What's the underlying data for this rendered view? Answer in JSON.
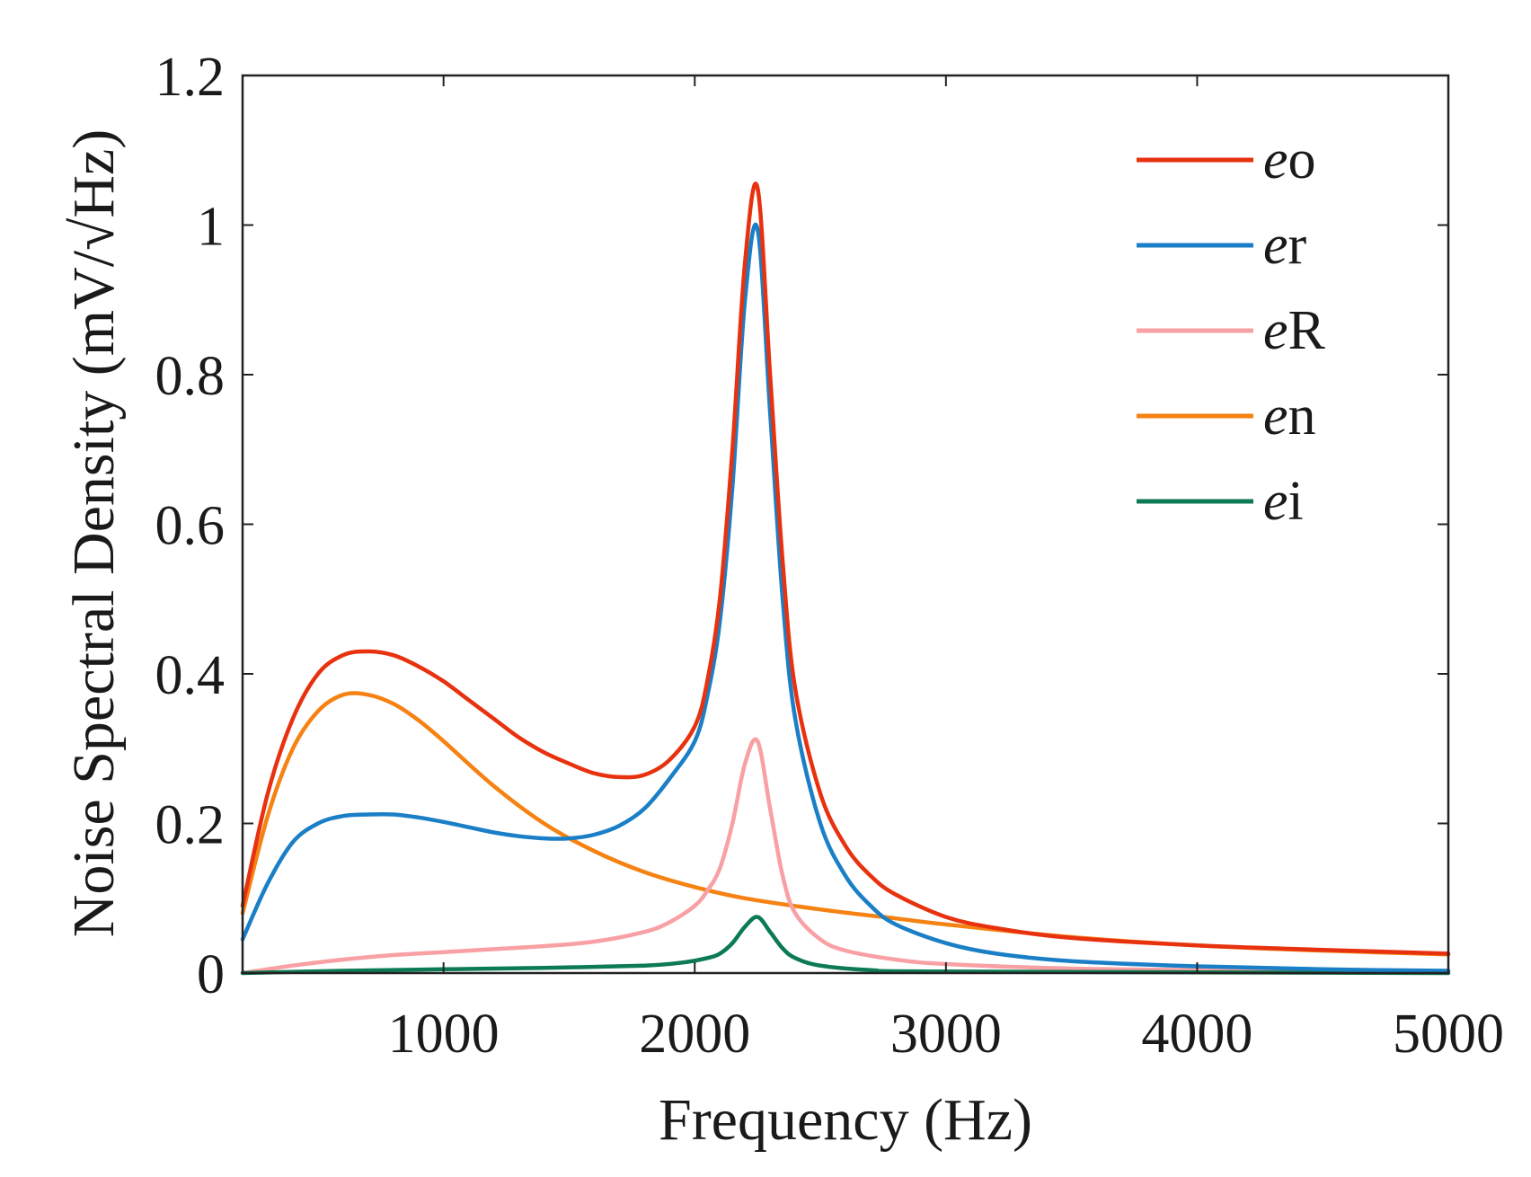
{
  "chart_data": {
    "type": "line",
    "title": "",
    "xlabel": "Frequency (Hz)",
    "ylabel": "Noise Spectral Density (mV/√Hz)",
    "xlim": [
      200,
      5000
    ],
    "ylim": [
      0,
      1.2
    ],
    "xticks": [
      1000,
      2000,
      3000,
      4000,
      5000
    ],
    "xtick_labels": [
      "1000",
      "2000",
      "3000",
      "4000",
      "5000"
    ],
    "yticks": [
      0,
      0.2,
      0.4,
      0.6,
      0.8,
      1.0,
      1.2
    ],
    "ytick_labels": [
      "0",
      "0.2",
      "0.4",
      "0.6",
      "0.8",
      "1",
      "1.2"
    ],
    "grid": false,
    "legend_position": "top-right",
    "series": [
      {
        "name": "eo",
        "prefix": "e",
        "suffix": "o",
        "color": "#e8320f",
        "x": [
          200,
          300,
          400,
          500,
          600,
          700,
          800,
          900,
          1000,
          1100,
          1200,
          1300,
          1400,
          1500,
          1600,
          1700,
          1800,
          1900,
          2000,
          2050,
          2100,
          2150,
          2200,
          2250,
          2300,
          2350,
          2400,
          2500,
          2600,
          2700,
          2800,
          3000,
          3200,
          3500,
          4000,
          4500,
          5000
        ],
        "y": [
          0.09,
          0.24,
          0.34,
          0.4,
          0.425,
          0.43,
          0.425,
          0.41,
          0.39,
          0.365,
          0.34,
          0.315,
          0.295,
          0.28,
          0.267,
          0.262,
          0.265,
          0.285,
          0.33,
          0.39,
          0.5,
          0.7,
          0.95,
          1.05,
          0.8,
          0.55,
          0.38,
          0.24,
          0.17,
          0.13,
          0.105,
          0.075,
          0.06,
          0.047,
          0.037,
          0.031,
          0.026
        ]
      },
      {
        "name": "er",
        "prefix": "e",
        "suffix": "r",
        "color": "#1a7fc6",
        "x": [
          200,
          300,
          400,
          500,
          600,
          700,
          800,
          900,
          1000,
          1100,
          1200,
          1300,
          1400,
          1500,
          1600,
          1700,
          1800,
          1900,
          2000,
          2050,
          2100,
          2150,
          2200,
          2250,
          2300,
          2350,
          2400,
          2500,
          2600,
          2700,
          2800,
          3000,
          3200,
          3500,
          4000,
          4500,
          5000
        ],
        "y": [
          0.045,
          0.12,
          0.175,
          0.2,
          0.21,
          0.212,
          0.212,
          0.208,
          0.202,
          0.195,
          0.188,
          0.183,
          0.18,
          0.18,
          0.185,
          0.197,
          0.22,
          0.26,
          0.31,
          0.37,
          0.47,
          0.65,
          0.9,
          0.995,
          0.75,
          0.5,
          0.34,
          0.2,
          0.13,
          0.09,
          0.065,
          0.04,
          0.026,
          0.016,
          0.009,
          0.005,
          0.003
        ]
      },
      {
        "name": "eR",
        "prefix": "e",
        "suffix": "R",
        "color": "#f8a0a3",
        "x": [
          200,
          400,
          600,
          800,
          1000,
          1200,
          1400,
          1600,
          1800,
          1900,
          2000,
          2050,
          2100,
          2150,
          2200,
          2250,
          2300,
          2350,
          2400,
          2500,
          2600,
          2800,
          3000,
          3500,
          4000,
          5000
        ],
        "y": [
          0.0,
          0.01,
          0.018,
          0.024,
          0.028,
          0.032,
          0.036,
          0.042,
          0.055,
          0.068,
          0.09,
          0.11,
          0.14,
          0.2,
          0.28,
          0.31,
          0.22,
          0.13,
          0.08,
          0.045,
          0.03,
          0.018,
          0.012,
          0.006,
          0.004,
          0.002
        ]
      },
      {
        "name": "en",
        "prefix": "e",
        "suffix": "n",
        "color": "#f58213",
        "x": [
          200,
          300,
          400,
          500,
          600,
          700,
          800,
          900,
          1000,
          1200,
          1400,
          1600,
          1800,
          2000,
          2200,
          2500,
          2800,
          3000,
          3500,
          4000,
          4500,
          5000
        ],
        "y": [
          0.08,
          0.21,
          0.3,
          0.35,
          0.372,
          0.372,
          0.36,
          0.338,
          0.31,
          0.25,
          0.2,
          0.163,
          0.135,
          0.115,
          0.1,
          0.085,
          0.073,
          0.065,
          0.048,
          0.037,
          0.03,
          0.025
        ]
      },
      {
        "name": "ei",
        "prefix": "e",
        "suffix": "i",
        "color": "#0c7a52",
        "x": [
          200,
          600,
          1000,
          1400,
          1800,
          1950,
          2050,
          2100,
          2150,
          2200,
          2250,
          2300,
          2350,
          2400,
          2500,
          2700,
          3000,
          5000
        ],
        "y": [
          0.0,
          0.003,
          0.005,
          0.007,
          0.01,
          0.014,
          0.02,
          0.026,
          0.04,
          0.062,
          0.075,
          0.055,
          0.033,
          0.02,
          0.01,
          0.004,
          0.002,
          0.0
        ]
      }
    ]
  }
}
